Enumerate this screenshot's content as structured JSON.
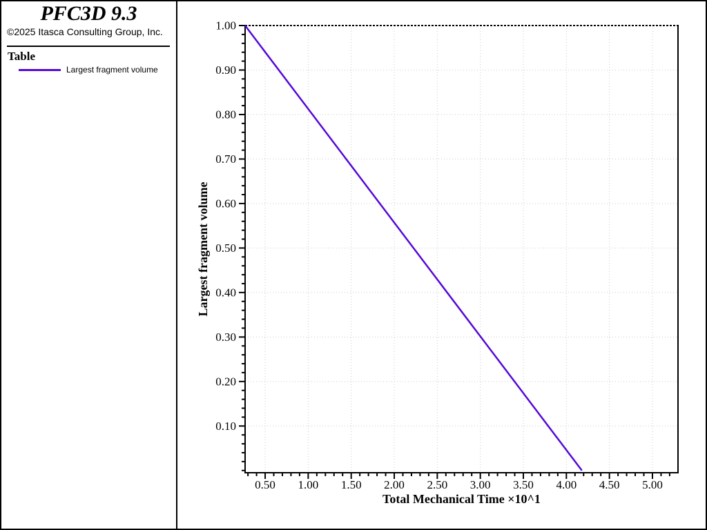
{
  "window": {
    "background": "#ffffff",
    "border_color": "#000000"
  },
  "sidebar": {
    "app_title": "PFC3D 9.3",
    "copyright": "©2025 Itasca Consulting Group, Inc.",
    "section_title": "Table",
    "legend": {
      "swatch_color": "#5508d9",
      "label": "Largest fragment volume"
    }
  },
  "chart_data": {
    "type": "line",
    "title": "",
    "xlabel": "Total Mechanical Time ×10^1",
    "ylabel": "Largest fragment volume",
    "xlim": [
      0.267,
      5.297
    ],
    "ylim": [
      -0.005,
      1.0
    ],
    "x_major_ticks": [
      0.5,
      1.0,
      1.5,
      2.0,
      2.5,
      3.0,
      3.5,
      4.0,
      4.5,
      5.0
    ],
    "x_tick_labels": [
      "0.50",
      "1.00",
      "1.50",
      "2.00",
      "2.50",
      "3.00",
      "3.50",
      "4.00",
      "4.50",
      "5.00"
    ],
    "y_major_ticks": [
      0.1,
      0.2,
      0.3,
      0.4,
      0.5,
      0.6,
      0.7,
      0.8,
      0.9,
      1.0
    ],
    "y_tick_labels": [
      "0.10",
      "0.20",
      "0.30",
      "0.40",
      "0.50",
      "0.60",
      "0.70",
      "0.80",
      "0.90",
      "1.00"
    ],
    "x_minor_step": 0.1,
    "y_minor_step": 0.02,
    "grid": true,
    "grid_color": "#c9c9c9",
    "top_gridline_color": "#000000",
    "axis_color": "#000000",
    "tick_label_color": "#000000",
    "legend_position": "sidebar-top-left",
    "series": [
      {
        "name": "Largest fragment volume",
        "color": "#5508d9",
        "points": [
          [
            0.267,
            1.0
          ],
          [
            4.18,
            0.0
          ]
        ]
      }
    ]
  }
}
